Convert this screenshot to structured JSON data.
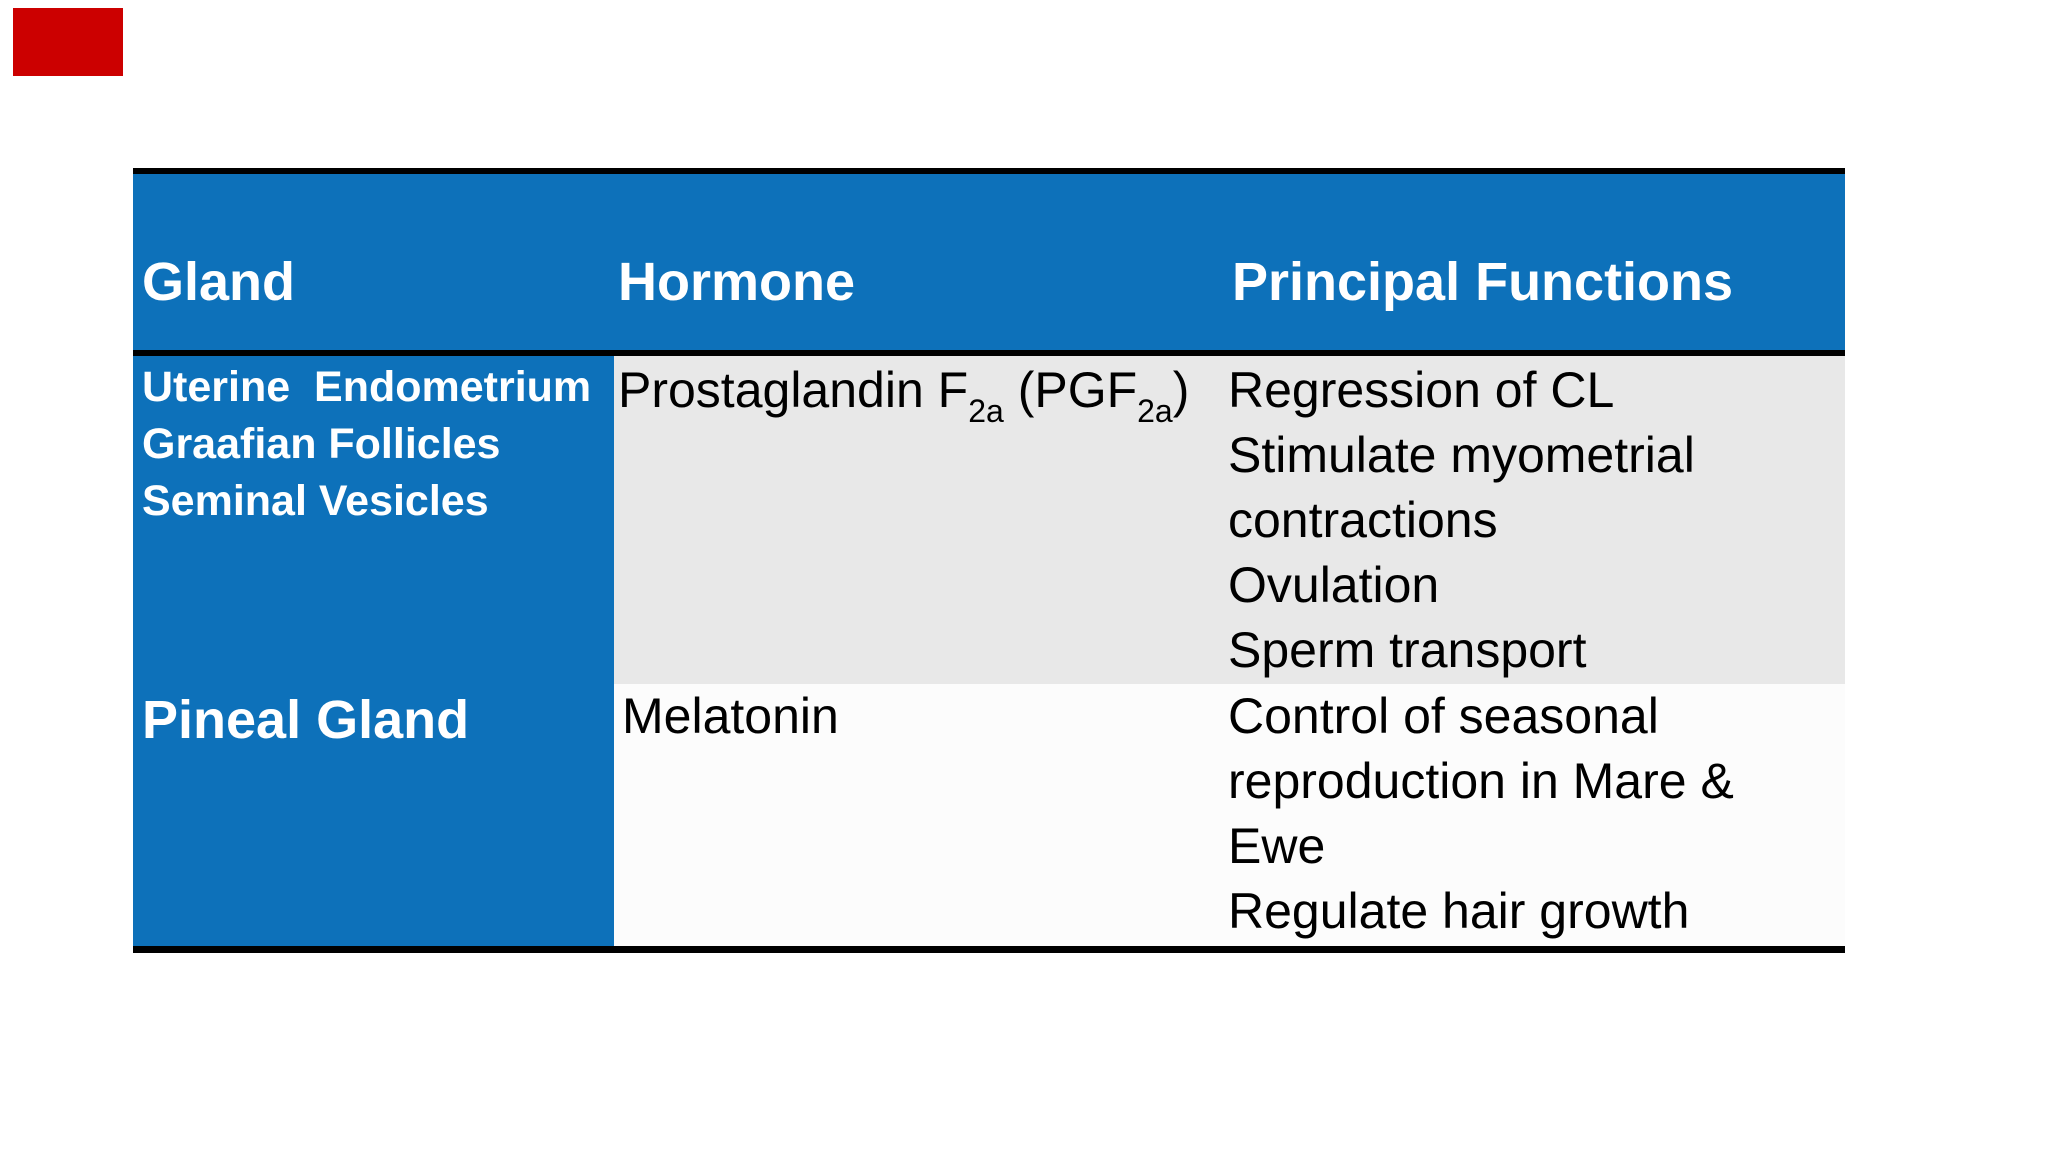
{
  "slide": {
    "background_color": "#ffffff",
    "accent_bar_color": "#cc0000"
  },
  "table": {
    "colors": {
      "header_bg": "#0d71ba",
      "header_text": "#ffffff",
      "row1_bg": "#e8e8e8",
      "row2_bg": "#fcfcfc",
      "border": "#000000",
      "body_text": "#000000"
    },
    "columns": [
      "Gland",
      "Hormone",
      "Principal Functions"
    ],
    "rows": [
      {
        "gland_lines": [
          "Uterine  Endometrium",
          "Graafian Follicles",
          "Seminal Vesicles"
        ],
        "hormone": {
          "base1": "Prostaglandin F",
          "sub1": "2a",
          "base2": " (PGF",
          "sub2": "2a",
          "base3": ")"
        },
        "function_lines": [
          "Regression of CL",
          "Stimulate myometrial",
          "contractions",
          "Ovulation",
          "Sperm transport"
        ]
      },
      {
        "gland_lines": [
          "Pineal Gland"
        ],
        "hormone": {
          "base1": "Melatonin"
        },
        "function_lines": [
          "Control of seasonal",
          "reproduction in Mare &",
          "Ewe",
          "Regulate hair growth"
        ]
      }
    ]
  }
}
